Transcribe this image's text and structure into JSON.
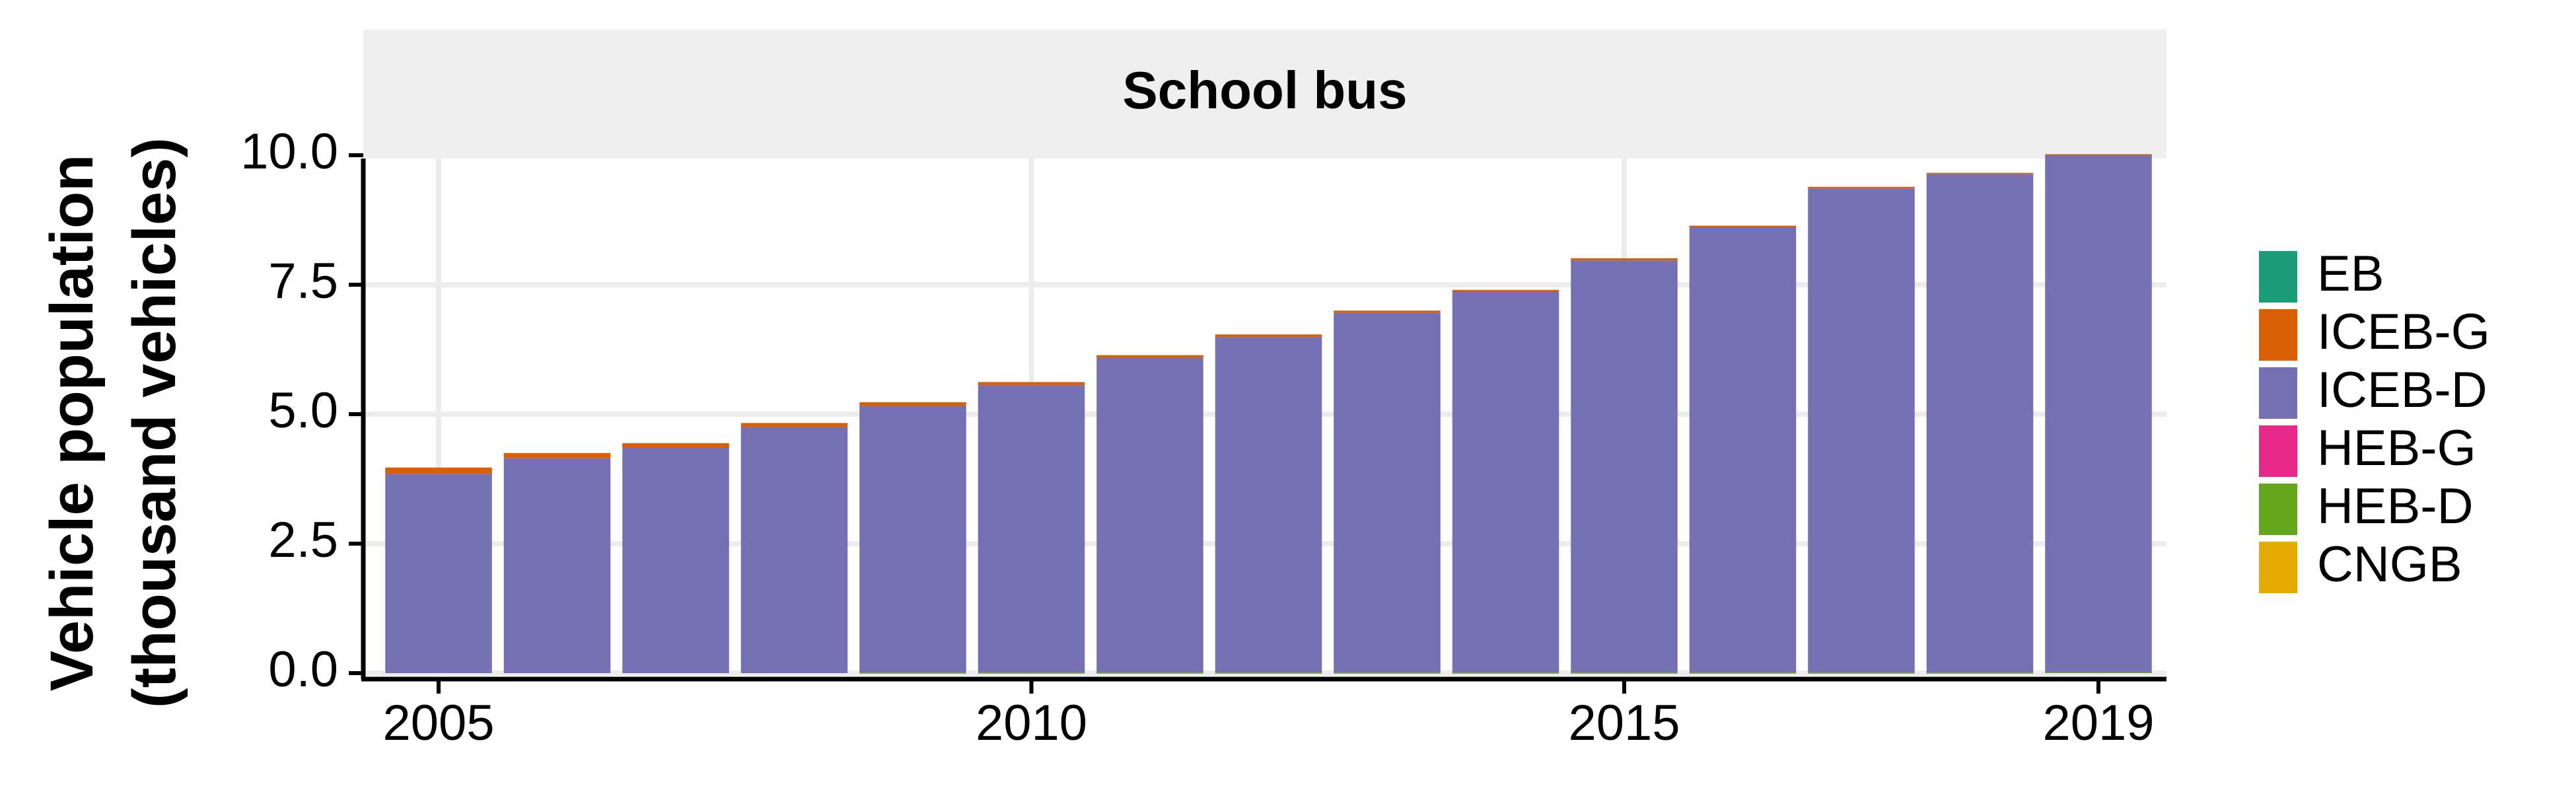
{
  "chart_data": {
    "type": "bar",
    "stacked": true,
    "title": "School bus",
    "ylabel": "Vehicle population\n(thousand vehicles)",
    "xlabel": "",
    "ylim": [
      0,
      12
    ],
    "yticks": [
      0.0,
      2.5,
      5.0,
      7.5,
      10.0
    ],
    "ytick_labels": [
      "0.0",
      "2.5",
      "5.0",
      "7.5",
      "10.0"
    ],
    "xticks": [
      2005,
      2010,
      2015,
      2019
    ],
    "xtick_labels": [
      "2005",
      "2010",
      "2015",
      "2019"
    ],
    "grid": true,
    "legend_position": "right",
    "categories": [
      2005,
      2006,
      2007,
      2008,
      2009,
      2010,
      2011,
      2012,
      2013,
      2014,
      2015,
      2016,
      2017,
      2018,
      2019
    ],
    "series": [
      {
        "name": "CNGB",
        "color": "#E6AB02",
        "values": [
          0,
          0,
          0,
          0,
          0,
          0,
          0,
          0,
          0,
          0,
          0,
          0,
          0,
          0,
          0
        ]
      },
      {
        "name": "HEB-D",
        "color": "#66A61E",
        "values": [
          0,
          0,
          0,
          0,
          0.01,
          0.01,
          0.01,
          0.01,
          0.01,
          0.01,
          0.01,
          0.01,
          0.01,
          0.01,
          0.02
        ]
      },
      {
        "name": "HEB-G",
        "color": "#E7298A",
        "values": [
          0,
          0,
          0,
          0,
          0,
          0,
          0,
          0,
          0,
          0,
          0,
          0,
          0,
          0,
          0
        ]
      },
      {
        "name": "ICEB-D",
        "color": "#7570B3",
        "values": [
          3.85,
          4.15,
          4.35,
          4.75,
          5.15,
          5.55,
          6.08,
          6.48,
          6.95,
          7.35,
          7.96,
          8.6,
          9.35,
          9.63,
          9.98
        ]
      },
      {
        "name": "ICEB-G",
        "color": "#D95F02",
        "values": [
          0.12,
          0.1,
          0.09,
          0.08,
          0.07,
          0.06,
          0.05,
          0.05,
          0.04,
          0.04,
          0.04,
          0.03,
          0.03,
          0.02,
          0.02
        ]
      },
      {
        "name": "EB",
        "color": "#1B9E77",
        "values": [
          0,
          0,
          0,
          0,
          0,
          0,
          0,
          0,
          0,
          0,
          0,
          0,
          0,
          0,
          0
        ]
      }
    ],
    "legend_order": [
      "EB",
      "ICEB-G",
      "ICEB-D",
      "HEB-G",
      "HEB-D",
      "CNGB"
    ]
  }
}
